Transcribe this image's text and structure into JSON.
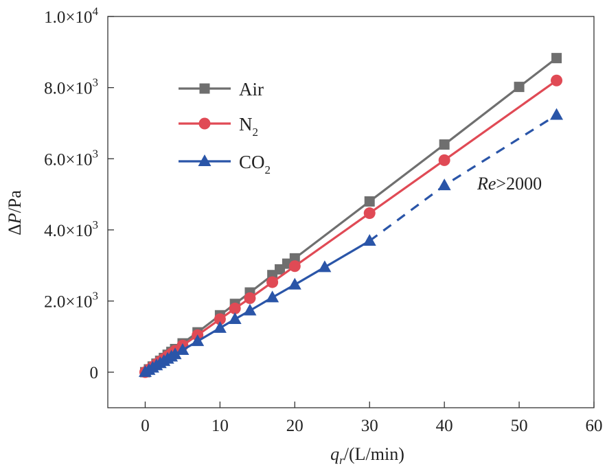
{
  "chart_data": {
    "type": "line",
    "title": "",
    "xlabel": {
      "main": "q",
      "sub": "r",
      "unit": "/(L/min)"
    },
    "ylabel": {
      "delta": "Δ",
      "var": "P",
      "unit": "/Pa"
    },
    "xlim": [
      -5,
      60
    ],
    "ylim": [
      -1000,
      10000
    ],
    "xticks": [
      0,
      10,
      20,
      30,
      40,
      50,
      60
    ],
    "yticks": [
      {
        "value": 0,
        "mantissa": "0",
        "exp": ""
      },
      {
        "value": 2000,
        "mantissa": "2.0×10",
        "exp": "3"
      },
      {
        "value": 4000,
        "mantissa": "4.0×10",
        "exp": "3"
      },
      {
        "value": 6000,
        "mantissa": "6.0×10",
        "exp": "3"
      },
      {
        "value": 8000,
        "mantissa": "8.0×10",
        "exp": "3"
      },
      {
        "value": 10000,
        "mantissa": "1.0×10",
        "exp": "4"
      }
    ],
    "legend_position": "top-left",
    "series": [
      {
        "name": "Air",
        "label_main": "Air",
        "label_sub": "",
        "color": "#6f6f6f",
        "marker": "square",
        "x": [
          0,
          0.5,
          1,
          1.5,
          2,
          2.5,
          3,
          3.5,
          4,
          5,
          7,
          10,
          12,
          14,
          17,
          18,
          19,
          20,
          30,
          40,
          50,
          55
        ],
        "y": [
          0,
          80,
          160,
          240,
          320,
          400,
          490,
          570,
          650,
          810,
          1120,
          1600,
          1920,
          2240,
          2730,
          2890,
          3050,
          3200,
          4800,
          6400,
          8020,
          8830
        ],
        "dashed_from_index": -1
      },
      {
        "name": "N2",
        "label_main": "N",
        "label_sub": "2",
        "color": "#e04a55",
        "marker": "circle",
        "x": [
          0,
          0.5,
          1,
          1.5,
          2,
          2.5,
          3,
          3.5,
          4,
          5,
          7,
          10,
          12,
          14,
          17,
          20,
          30,
          40,
          55
        ],
        "y": [
          0,
          75,
          150,
          225,
          300,
          370,
          450,
          520,
          600,
          750,
          1040,
          1490,
          1790,
          2080,
          2530,
          2980,
          4470,
          5960,
          8200
        ],
        "dashed_from_index": -1
      },
      {
        "name": "CO2",
        "label_main": "CO",
        "label_sub": "2",
        "color": "#2a55a8",
        "marker": "triangle",
        "x": [
          0,
          0.5,
          1,
          1.5,
          2,
          2.5,
          3,
          3.5,
          4,
          5,
          7,
          10,
          12,
          14,
          17,
          20,
          24,
          30,
          40,
          55
        ],
        "y": [
          0,
          60,
          125,
          190,
          250,
          310,
          375,
          435,
          500,
          620,
          870,
          1240,
          1490,
          1730,
          2100,
          2460,
          2950,
          3690,
          5250,
          7230
        ],
        "dashed_from_index": 17
      }
    ],
    "annotations": [
      {
        "italic": "Re",
        "rest": ">2000",
        "x": 44,
        "y": 5250
      }
    ]
  }
}
